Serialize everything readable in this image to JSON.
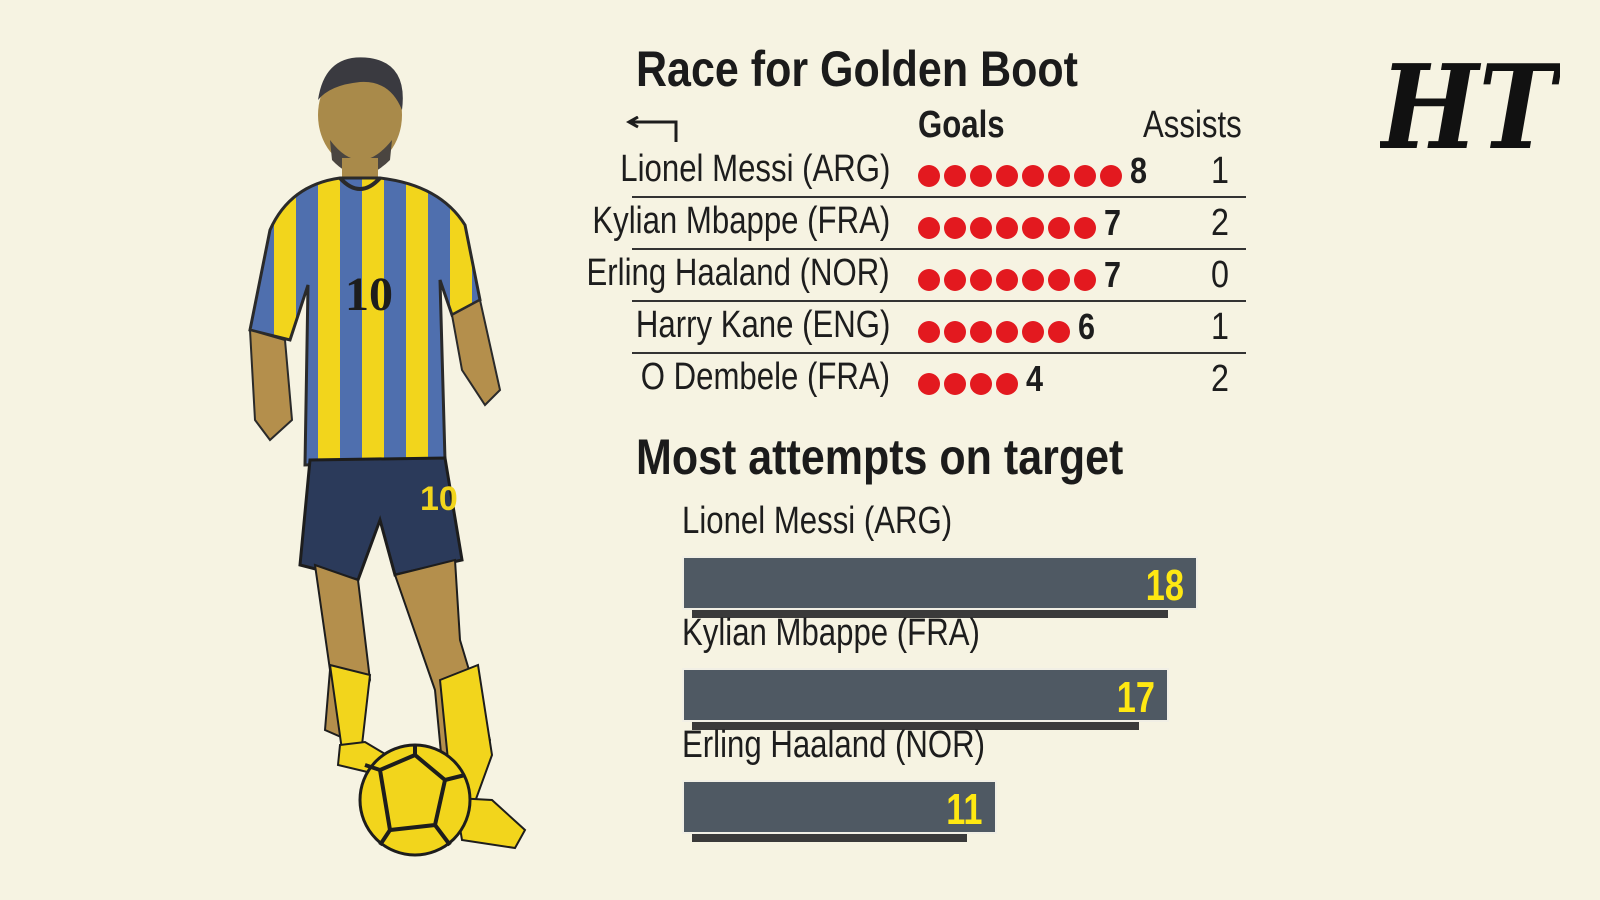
{
  "logo": {
    "text": "HT"
  },
  "golden_boot": {
    "title": "Race for Golden Boot",
    "headers": {
      "goals": "Goals",
      "assists": "Assists"
    },
    "rows": [
      {
        "player": "Lionel Messi (ARG)",
        "goals": 8,
        "assists": 1
      },
      {
        "player": "Kylian Mbappe (FRA)",
        "goals": 7,
        "assists": 2
      },
      {
        "player": "Erling Haaland (NOR)",
        "goals": 7,
        "assists": 0
      },
      {
        "player": "Harry Kane (ENG)",
        "goals": 6,
        "assists": 1
      },
      {
        "player": "O Dembele (FRA)",
        "goals": 4,
        "assists": 2
      }
    ]
  },
  "attempts": {
    "title": "Most attempts on target",
    "rows": [
      {
        "player": "Lionel Messi (ARG)",
        "value": 18
      },
      {
        "player": "Kylian Mbappe (FRA)",
        "value": 17
      },
      {
        "player": "Erling Haaland (NOR)",
        "value": 11
      }
    ]
  },
  "colors": {
    "background": "#f6f3e2",
    "goal_dot": "#e3191f",
    "bar": "#4f5963",
    "bar_value": "#ffe812",
    "jersey_yellow": "#f2d51c",
    "jersey_blue": "#4f6fae"
  },
  "chart_data": [
    {
      "type": "table",
      "title": "Race for Golden Boot",
      "columns": [
        "Goals",
        "Assists"
      ],
      "categories": [
        "Lionel Messi (ARG)",
        "Kylian Mbappe (FRA)",
        "Erling Haaland (NOR)",
        "Harry Kane (ENG)",
        "O Dembele (FRA)"
      ],
      "series": [
        {
          "name": "Goals",
          "values": [
            8,
            7,
            7,
            6,
            4
          ]
        },
        {
          "name": "Assists",
          "values": [
            1,
            2,
            0,
            1,
            2
          ]
        }
      ]
    },
    {
      "type": "bar",
      "orientation": "horizontal",
      "title": "Most attempts on target",
      "categories": [
        "Lionel Messi (ARG)",
        "Kylian Mbappe (FRA)",
        "Erling Haaland (NOR)"
      ],
      "values": [
        18,
        17,
        11
      ]
    }
  ]
}
